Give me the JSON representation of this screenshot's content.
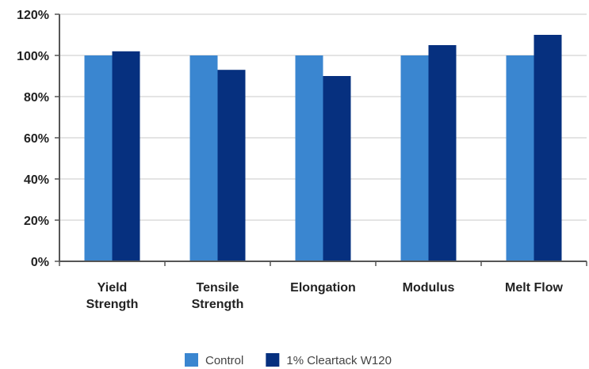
{
  "chart_data": {
    "type": "bar",
    "categories": [
      [
        "Yield",
        "Strength"
      ],
      [
        "Tensile",
        "Strength"
      ],
      [
        "Elongation"
      ],
      [
        "Modulus"
      ],
      [
        "Melt Flow"
      ]
    ],
    "series": [
      {
        "name": "Control",
        "color": "#3a86d0",
        "values": [
          100,
          100,
          100,
          100,
          100
        ]
      },
      {
        "name": "1% Cleartack W120",
        "color": "#06307f",
        "values": [
          102,
          93,
          90,
          105,
          110
        ]
      }
    ],
    "yticks": [
      "0%",
      "20%",
      "40%",
      "60%",
      "80%",
      "100%",
      "120%"
    ],
    "ylim": [
      0,
      120
    ],
    "grid": true,
    "legend_position": "bottom-center",
    "title": "",
    "xlabel": "",
    "ylabel": ""
  }
}
